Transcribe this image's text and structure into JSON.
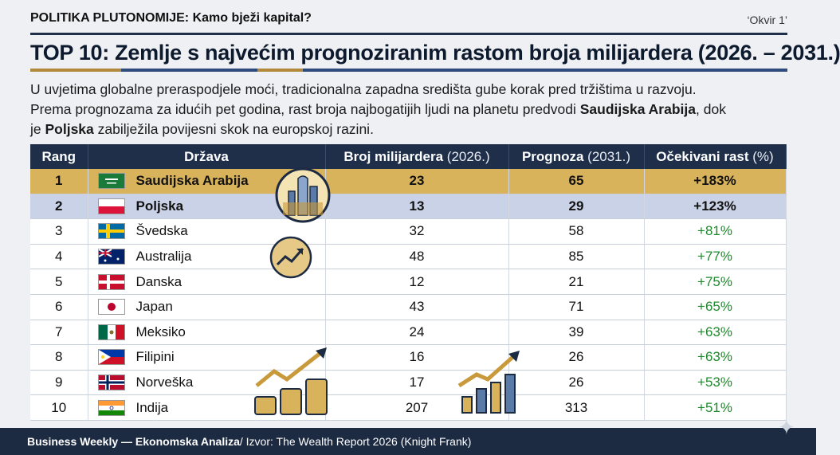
{
  "header": {
    "kicker": "POLITIKA PLUTONOMIJE: Kamo bježi kapital?",
    "okvir": "‘Okvir 1’",
    "title": "TOP 10: Zemlje s najvećim prognoziranim rastom broja milijardera (2026. – 2031.)"
  },
  "intro": {
    "line1": "U uvjetima globalne preraspodjele moći, tradicionalna zapadna središta gube korak pred tržištima u razvoju.",
    "line2_pre": "Prema prognozama za idućih pet godina, rast broja najbogatijih ljudi na planetu predvodi ",
    "line2_bold": "Saudijska Arabija",
    "line2_post": ", dok",
    "line3_pre": "je ",
    "line3_bold": "Poljska",
    "line3_post": " zabilježila povijesni skok na europskoj razini."
  },
  "table": {
    "headers": {
      "rank": "Rang",
      "country": "Država",
      "current": "Broj milijardera",
      "current_unit": "(2026.)",
      "forecast": "Prognoza",
      "forecast_unit": "(2031.)",
      "growth": "Očekivani rast",
      "growth_unit": "(%)"
    },
    "rows": [
      {
        "rank": "1",
        "country": "Saudijska Arabija",
        "flag": "flag-saudi-arabia",
        "current": "23",
        "forecast": "65",
        "growth": "+183%"
      },
      {
        "rank": "2",
        "country": "Poljska",
        "flag": "flag-poland",
        "current": "13",
        "forecast": "29",
        "growth": "+123%"
      },
      {
        "rank": "3",
        "country": "Švedska",
        "flag": "flag-sweden",
        "current": "32",
        "forecast": "58",
        "growth": "+81%"
      },
      {
        "rank": "4",
        "country": "Australija",
        "flag": "flag-australia",
        "current": "48",
        "forecast": "85",
        "growth": "+77%"
      },
      {
        "rank": "5",
        "country": "Danska",
        "flag": "flag-denmark",
        "current": "12",
        "forecast": "21",
        "growth": "+75%"
      },
      {
        "rank": "6",
        "country": "Japan",
        "flag": "flag-japan",
        "current": "43",
        "forecast": "71",
        "growth": "+65%"
      },
      {
        "rank": "7",
        "country": "Meksiko",
        "flag": "flag-mexico",
        "current": "24",
        "forecast": "39",
        "growth": "+63%"
      },
      {
        "rank": "8",
        "country": "Filipini",
        "flag": "flag-philippines",
        "current": "16",
        "forecast": "26",
        "growth": "+63%"
      },
      {
        "rank": "9",
        "country": "Norveška",
        "flag": "flag-norway",
        "current": "17",
        "forecast": "26",
        "growth": "+53%"
      },
      {
        "rank": "10",
        "country": "Indija",
        "flag": "flag-india",
        "current": "207",
        "forecast": "313",
        "growth": "+51%"
      }
    ]
  },
  "footer": {
    "bold": "Business Weekly — Ekonomska Analiza",
    "rest": " / Izvor: The Wealth Report 2026 (Knight Frank)"
  },
  "colors": {
    "navy": "#1f2f4a",
    "gold_row": "#d9b25c",
    "silver_row": "#c9d2e6",
    "growth_green": "#1e8a2c"
  }
}
